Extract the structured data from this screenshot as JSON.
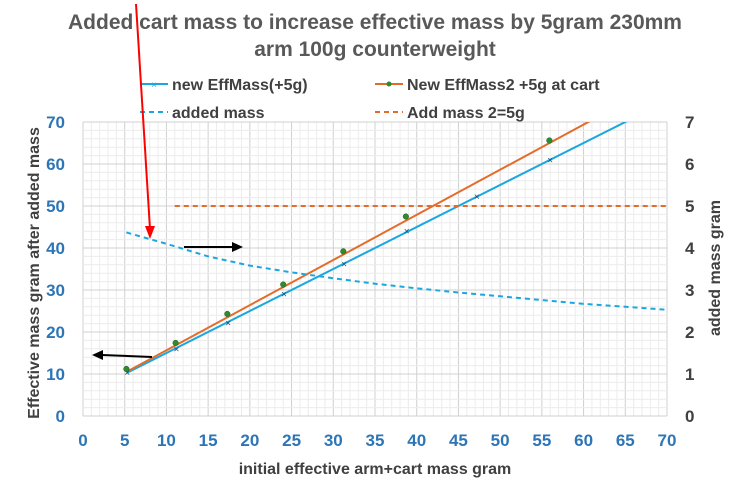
{
  "chart_data": {
    "type": "line",
    "title_lines": [
      "Added cart mass to increase effective mass by 5gram 230mm",
      "arm 100g counterweight"
    ],
    "xlabel": "initial effective arm+cart mass gram",
    "ylabel": "Effective mass gram after added mass",
    "y2label": "added mass gram",
    "xlim": [
      0,
      70
    ],
    "ylim": [
      0,
      70
    ],
    "y2lim": [
      0,
      7
    ],
    "x_ticks": [
      "0",
      "5",
      "10",
      "15",
      "20",
      "25",
      "30",
      "35",
      "40",
      "45",
      "50",
      "55",
      "60",
      "65",
      "70"
    ],
    "y_ticks": [
      "0",
      "10",
      "20",
      "30",
      "40",
      "50",
      "60",
      "70"
    ],
    "y2_ticks": [
      "0",
      "1",
      "2",
      "3",
      "4",
      "5",
      "6",
      "7"
    ],
    "grid": true,
    "legend_position": "top",
    "series": [
      {
        "name": "new EffMass(+5g)",
        "axis": "left",
        "color": "#1aa7e0",
        "style": "solid",
        "marker": "x",
        "x": [
          5.3,
          11.2,
          17.4,
          24.1,
          31.3,
          38.8,
          47.2,
          56.0
        ],
        "values": [
          10.3,
          16.0,
          22.1,
          29.0,
          36.2,
          44.0,
          52.3,
          61.0
        ],
        "line_x": [
          5.3,
          66
        ],
        "line_values": [
          10.3,
          71
        ]
      },
      {
        "name": "New EffMass2 +5g at cart",
        "axis": "left",
        "color": "#e46c2b",
        "style": "solid",
        "marker": "dot",
        "x": [
          5.2,
          11.1,
          17.3,
          24.0,
          31.2,
          38.7,
          55.9
        ],
        "values": [
          11.2,
          17.4,
          24.3,
          31.3,
          39.2,
          47.5,
          65.6
        ],
        "line_x": [
          5.3,
          61.5
        ],
        "line_values": [
          10.6,
          71
        ]
      },
      {
        "name": "added mass",
        "axis": "right",
        "color": "#1aa7e0",
        "style": "dashed",
        "x": [
          5.2,
          10,
          15,
          20,
          25,
          30,
          35,
          40,
          45,
          50,
          55,
          60,
          65,
          70
        ],
        "values": [
          4.37,
          4.1,
          3.8,
          3.58,
          3.42,
          3.28,
          3.15,
          3.04,
          2.94,
          2.85,
          2.76,
          2.67,
          2.6,
          2.53
        ]
      },
      {
        "name": "Add mass 2=5g",
        "axis": "right",
        "color": "#e46c2b",
        "style": "dashed",
        "x": [
          11,
          70
        ],
        "values": [
          5,
          5
        ]
      }
    ],
    "annotations": [
      {
        "type": "arrow",
        "color": "#ff0000",
        "description": "red arrow pointing to start of added mass curve"
      },
      {
        "type": "arrow",
        "color": "#000000",
        "description": "black arrow pointing right toward right axis"
      },
      {
        "type": "arrow",
        "color": "#000000",
        "description": "black arrow pointing left toward left axis"
      }
    ]
  }
}
